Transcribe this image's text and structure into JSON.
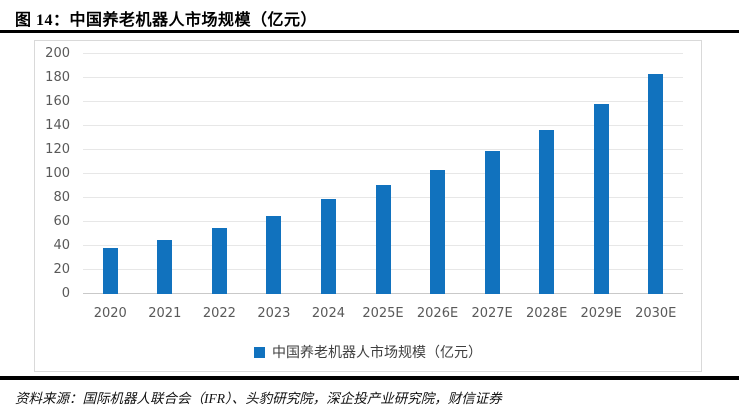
{
  "figure": {
    "title": "图 14：中国养老机器人市场规模（亿元）",
    "source": "资料来源：国际机器人联合会（IFR）、头豹研究院，深企投产业研究院，财信证券"
  },
  "legend": {
    "label": "中国养老机器人市场规模（亿元）"
  },
  "colors": {
    "bar": "#1172be",
    "grid": "#e7e7e7",
    "baseline": "#c9c9c9",
    "axis_text": "#595959",
    "card_border": "#d9d9d9",
    "rule": "#000000"
  },
  "chart_data": {
    "type": "bar",
    "categories": [
      "2020",
      "2021",
      "2022",
      "2023",
      "2024",
      "2025E",
      "2026E",
      "2027E",
      "2028E",
      "2029E",
      "2030E"
    ],
    "values": [
      38,
      45,
      55,
      65,
      79,
      91,
      103,
      119,
      137,
      158,
      183
    ],
    "title": "中国养老机器人市场规模（亿元）",
    "xlabel": "",
    "ylabel": "",
    "ylim": [
      0,
      200
    ],
    "ytick_step": 20,
    "grid": true,
    "legend_position": "bottom",
    "bar_color": "#1172be"
  }
}
